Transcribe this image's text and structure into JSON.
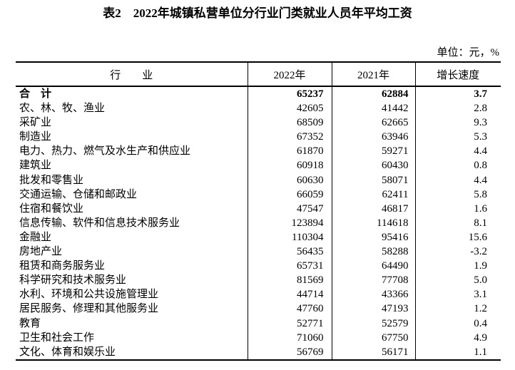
{
  "page": {
    "title": "表2　2022年城镇私营单位分行业门类就业人员年平均工资",
    "unit_note": "单位：元，%"
  },
  "colors": {
    "text": "#000000",
    "background": "#ffffff",
    "line": "#000000"
  },
  "table": {
    "columns": [
      {
        "key": "industry",
        "label": "行　　业"
      },
      {
        "key": "y2022",
        "label": "2022年"
      },
      {
        "key": "y2021",
        "label": "2021年"
      },
      {
        "key": "growth",
        "label": "增长速度"
      }
    ],
    "rows": [
      {
        "industry": "合　计",
        "y2022": "65237",
        "y2021": "62884",
        "growth": "3.7",
        "bold": true
      },
      {
        "industry": "农、林、牧、渔业",
        "y2022": "42605",
        "y2021": "41442",
        "growth": "2.8"
      },
      {
        "industry": "采矿业",
        "y2022": "68509",
        "y2021": "62665",
        "growth": "9.3"
      },
      {
        "industry": "制造业",
        "y2022": "67352",
        "y2021": "63946",
        "growth": "5.3"
      },
      {
        "industry": "电力、热力、燃气及水生产和供应业",
        "y2022": "61870",
        "y2021": "59271",
        "growth": "4.4"
      },
      {
        "industry": "建筑业",
        "y2022": "60918",
        "y2021": "60430",
        "growth": "0.8"
      },
      {
        "industry": "批发和零售业",
        "y2022": "60630",
        "y2021": "58071",
        "growth": "4.4"
      },
      {
        "industry": "交通运输、仓储和邮政业",
        "y2022": "66059",
        "y2021": "62411",
        "growth": "5.8"
      },
      {
        "industry": "住宿和餐饮业",
        "y2022": "47547",
        "y2021": "46817",
        "growth": "1.6"
      },
      {
        "industry": "信息传输、软件和信息技术服务业",
        "y2022": "123894",
        "y2021": "114618",
        "growth": "8.1"
      },
      {
        "industry": "金融业",
        "y2022": "110304",
        "y2021": "95416",
        "growth": "15.6"
      },
      {
        "industry": "房地产业",
        "y2022": "56435",
        "y2021": "58288",
        "growth": "-3.2"
      },
      {
        "industry": "租赁和商务服务业",
        "y2022": "65731",
        "y2021": "64490",
        "growth": "1.9"
      },
      {
        "industry": "科学研究和技术服务业",
        "y2022": "81569",
        "y2021": "77708",
        "growth": "5.0"
      },
      {
        "industry": "水利、环境和公共设施管理业",
        "y2022": "44714",
        "y2021": "43366",
        "growth": "3.1"
      },
      {
        "industry": "居民服务、修理和其他服务业",
        "y2022": "47760",
        "y2021": "47193",
        "growth": "1.2"
      },
      {
        "industry": "教育",
        "y2022": "52771",
        "y2021": "52579",
        "growth": "0.4"
      },
      {
        "industry": "卫生和社会工作",
        "y2022": "71060",
        "y2021": "67750",
        "growth": "4.9"
      },
      {
        "industry": "文化、体育和娱乐业",
        "y2022": "56769",
        "y2021": "56171",
        "growth": "1.1"
      }
    ]
  }
}
